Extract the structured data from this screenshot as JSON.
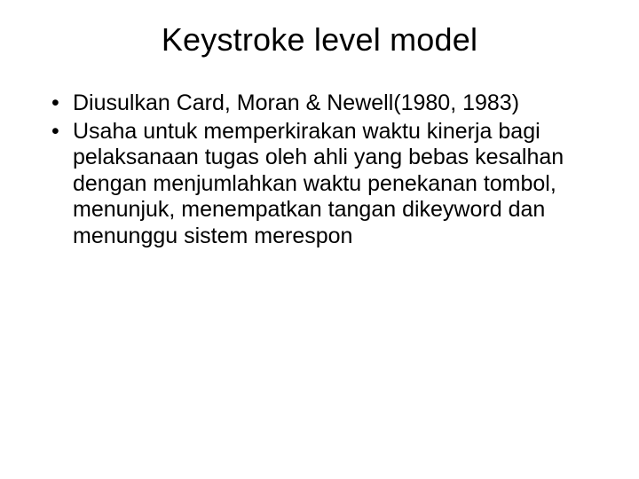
{
  "slide": {
    "title": "Keystroke level model",
    "bullets": [
      "Diusulkan Card, Moran & Newell(1980, 1983)",
      "Usaha untuk memperkirakan waktu kinerja bagi pelaksanaan tugas oleh ahli yang bebas kesalhan dengan menjumlahkan waktu penekanan tombol, menunjuk, menempatkan tangan dikeyword dan menunggu sistem merespon"
    ],
    "colors": {
      "background": "#ffffff",
      "text": "#000000"
    },
    "typography": {
      "title_fontsize": 36,
      "body_fontsize": 25,
      "font_family": "Arial"
    }
  }
}
